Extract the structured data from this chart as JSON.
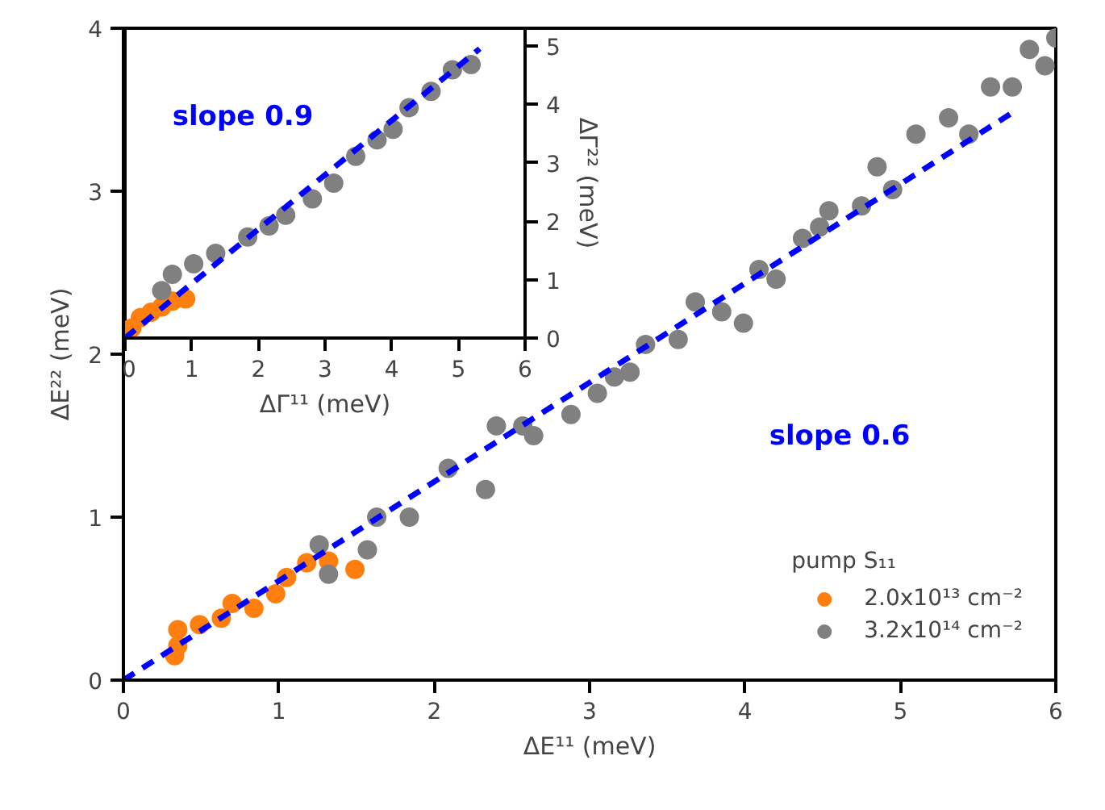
{
  "chart_data": [
    {
      "type": "scatter",
      "xlabel": "ΔE¹¹ (meV)",
      "ylabel": "ΔE²² (meV)",
      "legend_title": "pump S₁₁",
      "legend": "bottom right",
      "grid": false,
      "xlim": [
        0,
        6
      ],
      "ylim": [
        0,
        4
      ],
      "xticks": [
        0,
        1,
        2,
        3,
        4,
        5,
        6
      ],
      "yticks": [
        0,
        1,
        2,
        3,
        4
      ],
      "annotations": [
        "slope 0.6"
      ],
      "series": [
        {
          "name": "2.0x10¹³ cm⁻²",
          "color": "#ff7f0e",
          "marker": "circle",
          "x": [
            0.33,
            0.35,
            0.35,
            0.49,
            0.63,
            0.7,
            0.84,
            0.98,
            1.05,
            1.18,
            1.32,
            1.49
          ],
          "values": [
            0.15,
            0.21,
            0.31,
            0.34,
            0.38,
            0.47,
            0.44,
            0.53,
            0.63,
            0.72,
            0.73,
            0.68
          ]
        },
        {
          "name": "3.2x10¹⁴ cm⁻²",
          "color": "#808080",
          "marker": "circle",
          "x": [
            1.26,
            1.32,
            1.57,
            1.63,
            1.84,
            2.09,
            2.33,
            2.4,
            2.57,
            2.64,
            2.88,
            3.05,
            3.16,
            3.26,
            3.36,
            3.57,
            3.68,
            3.85,
            3.99,
            4.09,
            4.2,
            4.37,
            4.48,
            4.54,
            4.75,
            4.85,
            4.95,
            5.1,
            5.31,
            5.44,
            5.58,
            5.72,
            5.83,
            5.93,
            6.0
          ],
          "values": [
            0.83,
            0.65,
            0.8,
            1.0,
            1.0,
            1.3,
            1.17,
            1.56,
            1.56,
            1.5,
            1.63,
            1.76,
            1.86,
            1.89,
            2.06,
            2.09,
            2.32,
            2.26,
            2.19,
            2.52,
            2.46,
            2.71,
            2.78,
            2.88,
            2.91,
            3.15,
            3.01,
            3.35,
            3.45,
            3.35,
            3.64,
            3.64,
            3.87,
            3.77,
            3.94
          ]
        },
        {
          "type": "line",
          "line_style": "dashed",
          "color": "#0000ff",
          "x": [
            0,
            5.75
          ],
          "values": [
            0,
            3.5
          ]
        }
      ]
    },
    {
      "type": "scatter",
      "xlabel": "ΔΓ¹¹ (meV)",
      "ylabel": "ΔΓ²² (meV)",
      "grid": false,
      "xlim": [
        0,
        6
      ],
      "ylim": [
        0,
        5.3
      ],
      "xticks": [
        0,
        1,
        2,
        3,
        4,
        5,
        6
      ],
      "yticks": [
        0,
        1,
        2,
        3,
        4,
        5
      ],
      "annotations": [
        "slope 0.9"
      ],
      "series": [
        {
          "color": "#ff7f0e",
          "marker": "circle",
          "x": [
            0.1,
            0.23,
            0.39,
            0.55,
            0.71,
            0.91
          ],
          "values": [
            0.17,
            0.35,
            0.44,
            0.53,
            0.63,
            0.67
          ]
        },
        {
          "color": "#808080",
          "marker": "circle",
          "x": [
            0.55,
            0.71,
            1.03,
            1.36,
            1.84,
            2.16,
            2.41,
            2.81,
            3.13,
            3.46,
            3.78,
            4.02,
            4.26,
            4.59,
            4.91,
            5.19
          ],
          "values": [
            0.81,
            1.09,
            1.27,
            1.45,
            1.73,
            1.92,
            2.1,
            2.38,
            2.65,
            3.11,
            3.39,
            3.57,
            3.94,
            4.22,
            4.59,
            4.68
          ]
        },
        {
          "type": "line",
          "line_style": "dashed",
          "color": "#0000ff",
          "x": [
            0,
            5.32
          ],
          "values": [
            0,
            4.95
          ]
        }
      ]
    }
  ]
}
